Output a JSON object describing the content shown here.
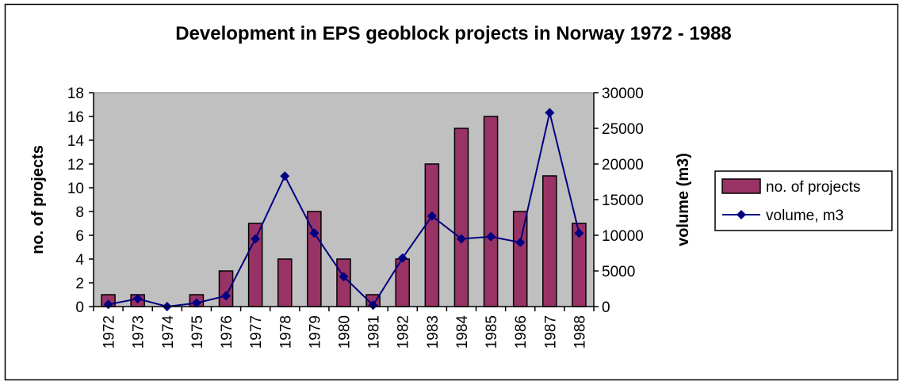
{
  "chart_data": {
    "type": "bar",
    "title": "Development in EPS geoblock projects in Norway 1972 - 1988",
    "xlabel": "",
    "ylabel": "no. of projects",
    "y2label": "volume (m3)",
    "categories": [
      "1972",
      "1973",
      "1974",
      "1975",
      "1976",
      "1977",
      "1978",
      "1979",
      "1980",
      "1981",
      "1982",
      "1983",
      "1984",
      "1985",
      "1986",
      "1987",
      "1988"
    ],
    "ylim": [
      0,
      18
    ],
    "y2lim": [
      0,
      30000
    ],
    "yticks": [
      "0",
      "2",
      "4",
      "6",
      "8",
      "10",
      "12",
      "14",
      "16",
      "18"
    ],
    "y2ticks": [
      "0",
      "5000",
      "10000",
      "15000",
      "20000",
      "25000",
      "30000"
    ],
    "grid": false,
    "legend_position": "right",
    "series": [
      {
        "name": "no. of projects",
        "kind": "bar",
        "axis": "left",
        "color": "#993366",
        "values": [
          1,
          1,
          0,
          1,
          3,
          7,
          4,
          8,
          4,
          1,
          4,
          12,
          15,
          16,
          8,
          11,
          7
        ]
      },
      {
        "name": "volume, m3",
        "kind": "line",
        "axis": "right",
        "color": "#000080",
        "marker": "diamond",
        "values": [
          300,
          1100,
          0,
          500,
          1500,
          9500,
          18300,
          10300,
          4200,
          200,
          6800,
          12700,
          9500,
          9800,
          9000,
          27200,
          10300
        ]
      }
    ],
    "plot_background": "#c0c0c0"
  }
}
